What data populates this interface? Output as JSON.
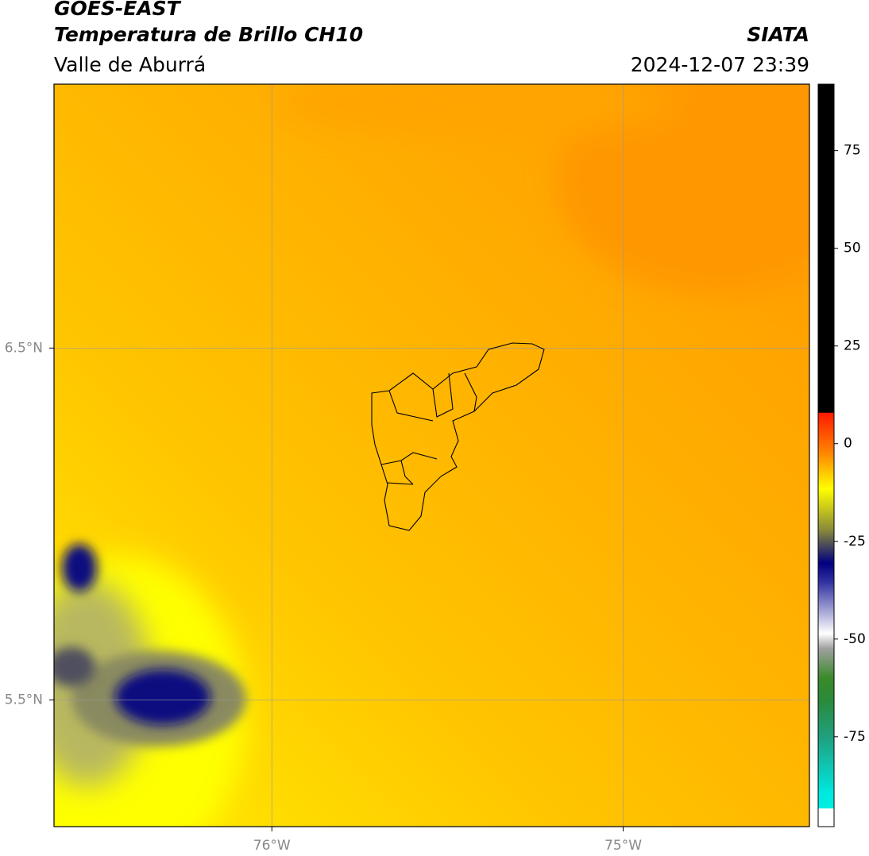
{
  "header": {
    "title": "GOES-EAST",
    "subtitle": "Temperatura de Brillo CH10",
    "region": "Valle de Aburrá",
    "agency": "SIATA",
    "timestamp": "2024-12-07 23:39"
  },
  "map": {
    "xlim": [
      -76.62,
      -74.47
    ],
    "ylim": [
      5.14,
      7.25
    ],
    "xticks": [
      {
        "value": -76,
        "label": "76°W"
      },
      {
        "value": -75,
        "label": "75°W"
      }
    ],
    "yticks": [
      {
        "value": 6.5,
        "label": "6.5°N"
      },
      {
        "value": 5.5,
        "label": "5.5°N"
      }
    ],
    "grid": true
  },
  "colorbar": {
    "lim": [
      -98,
      92
    ],
    "ticks": [
      75,
      50,
      25,
      0,
      -25,
      -50,
      -75
    ]
  }
}
